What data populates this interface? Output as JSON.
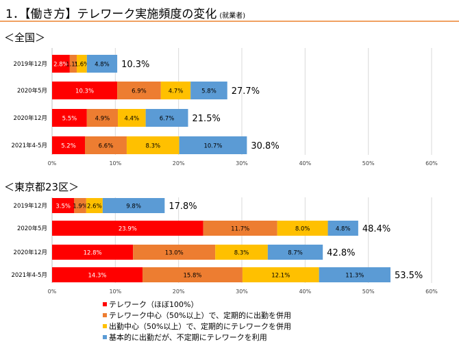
{
  "header": {
    "title": "1．【働き方】テレワーク実施頻度の変化",
    "subtitle": "(就業者)"
  },
  "colors": [
    "#ff0000",
    "#ed7d31",
    "#ffc000",
    "#5b9bd5"
  ],
  "legend": [
    "テレワーク（ほぼ100%）",
    "テレワーク中心（50%以上）で、定期的に出勤を併用",
    "出勤中心（50%以上）で、定期的にテレワークを併用",
    "基本的に出勤だが、不定期にテレワークを利用"
  ],
  "chart_data": [
    {
      "type": "bar",
      "orientation": "horizontal",
      "stacked": true,
      "title": "＜全国＞",
      "categories": [
        "2019年12月",
        "2020年5月",
        "2020年12月",
        "2021年4-5月"
      ],
      "series": [
        {
          "values": [
            2.8,
            10.3,
            5.5,
            5.2
          ],
          "labels": [
            "2.8%",
            "10.3%",
            "5.5%",
            "5.2%"
          ]
        },
        {
          "values": [
            1.1,
            6.9,
            4.9,
            6.6
          ],
          "labels": [
            "1.1%",
            "6.9%",
            "4.9%",
            "6.6%"
          ]
        },
        {
          "values": [
            1.6,
            4.7,
            4.4,
            8.3
          ],
          "labels": [
            "1.6%",
            "4.7%",
            "4.4%",
            "8.3%"
          ]
        },
        {
          "values": [
            4.8,
            5.8,
            6.7,
            10.7
          ],
          "labels": [
            "4.8%",
            "5.8%",
            "6.7%",
            "10.7%"
          ]
        }
      ],
      "totals": [
        "10.3%",
        "27.7%",
        "21.5%",
        "30.8%"
      ],
      "xlim": [
        0,
        60
      ],
      "xticks": [
        "0%",
        "10%",
        "20%",
        "30%",
        "40%",
        "50%",
        "60%"
      ]
    },
    {
      "type": "bar",
      "orientation": "horizontal",
      "stacked": true,
      "title": "＜東京都23区＞",
      "categories": [
        "2019年12月",
        "2020年5月",
        "2020年12月",
        "2021年4-5月"
      ],
      "series": [
        {
          "values": [
            3.5,
            23.9,
            12.8,
            14.3
          ],
          "labels": [
            "3.5%",
            "23.9%",
            "12.8%",
            "14.3%"
          ]
        },
        {
          "values": [
            1.9,
            11.7,
            13.0,
            15.8
          ],
          "labels": [
            "1.9%",
            "11.7%",
            "13.0%",
            "15.8%"
          ]
        },
        {
          "values": [
            2.6,
            8.0,
            8.3,
            12.1
          ],
          "labels": [
            "2.6%",
            "8.0%",
            "8.3%",
            "12.1%"
          ]
        },
        {
          "values": [
            9.8,
            4.8,
            8.7,
            11.3
          ],
          "labels": [
            "9.8%",
            "4.8%",
            "8.7%",
            "11.3%"
          ]
        }
      ],
      "totals": [
        "17.8%",
        "48.4%",
        "42.8%",
        "53.5%"
      ],
      "xlim": [
        0,
        60
      ],
      "xticks": [
        "0%",
        "10%",
        "20%",
        "30%",
        "40%",
        "50%",
        "60%"
      ]
    }
  ]
}
